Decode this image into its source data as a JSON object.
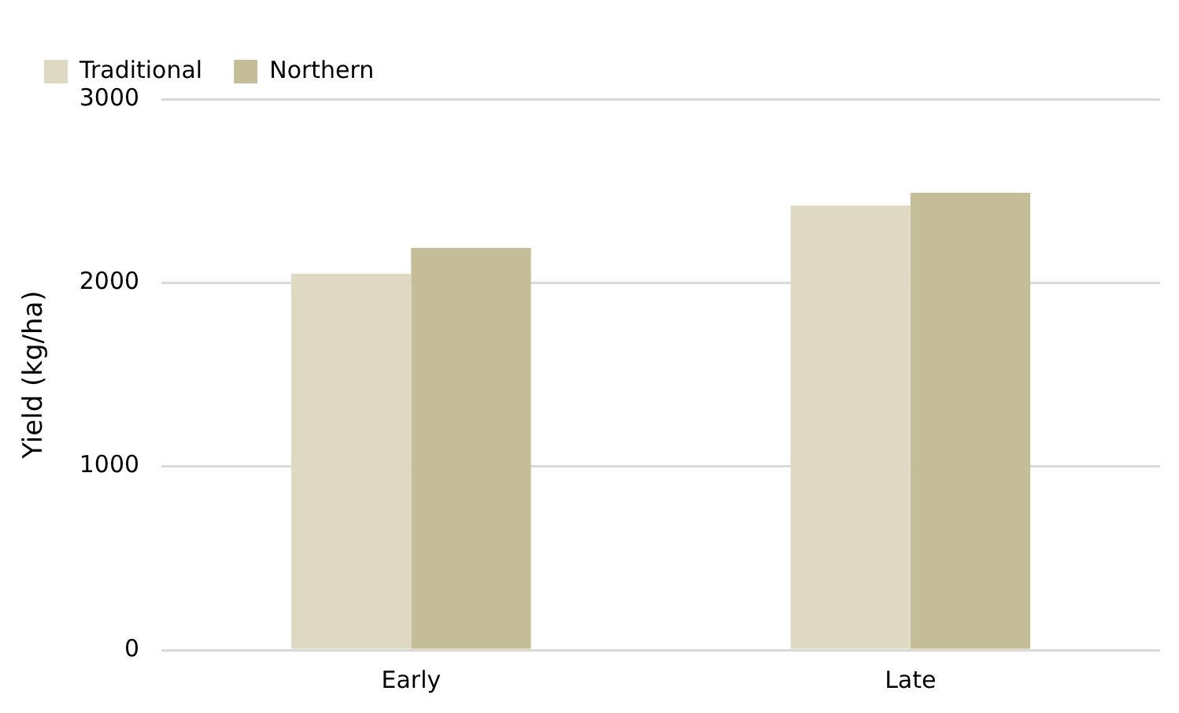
{
  "chart_data": {
    "type": "bar",
    "ylabel": "Yield (kg/ha)",
    "categories": [
      "Early",
      "Late"
    ],
    "series": [
      {
        "name": "Traditional",
        "color": "#ddd9c3",
        "values": [
          2050,
          2420
        ]
      },
      {
        "name": "Northern",
        "color": "#c4bd97",
        "values": [
          2190,
          2490
        ]
      }
    ],
    "ylim": [
      0,
      3000
    ],
    "yticks": [
      0,
      1000,
      2000,
      3000
    ],
    "grid": "y",
    "legend": "top left"
  }
}
